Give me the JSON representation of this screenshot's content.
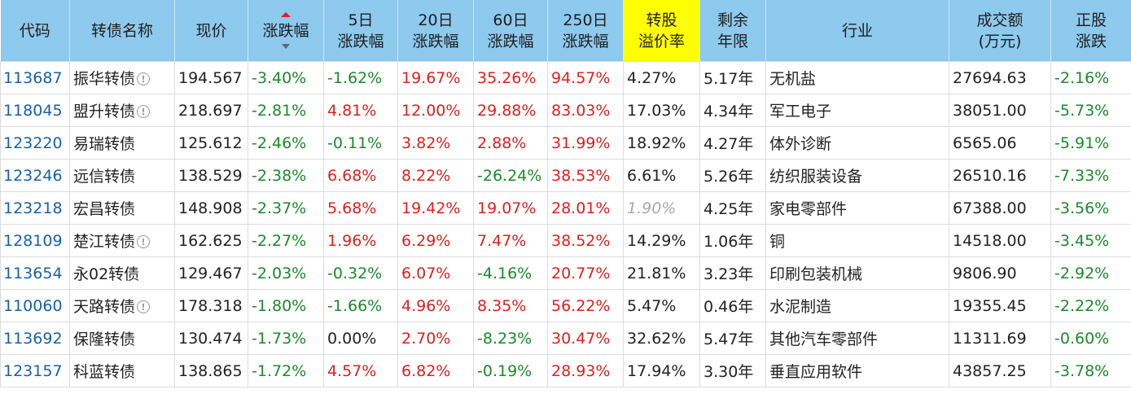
{
  "headers": {
    "code": "代码",
    "name": "转债名称",
    "price": "现价",
    "change": "涨跌幅",
    "d5_1": "5日",
    "d5_2": "涨跌幅",
    "d20_1": "20日",
    "d20_2": "涨跌幅",
    "d60_1": "60日",
    "d60_2": "涨跌幅",
    "d250_1": "250日",
    "d250_2": "涨跌幅",
    "premium_1": "转股",
    "premium_2": "溢价率",
    "remain_1": "剩余",
    "remain_2": "年限",
    "industry": "行业",
    "volume_1": "成交额",
    "volume_2": "(万元)",
    "stock_1": "正股",
    "stock_2": "涨跌"
  },
  "colors": {
    "header_bg": "#8ec9ee",
    "highlight": "#ffff00",
    "up": "#e0201c",
    "down": "#1c8a2a",
    "code": "#1a5fa8"
  },
  "sort_indicator": "change-desc",
  "rows": [
    {
      "code": "113687",
      "name": "振华转债",
      "info": true,
      "price": "194.567",
      "change": "-3.40%",
      "d5": "-1.62%",
      "d20": "19.67%",
      "d60": "35.26%",
      "d250": "94.57%",
      "premium": "4.27%",
      "remain": "5.17年",
      "industry": "无机盐",
      "volume": "27694.63",
      "stock": "-2.16%"
    },
    {
      "code": "118045",
      "name": "盟升转债",
      "info": true,
      "price": "218.697",
      "change": "-2.81%",
      "d5": "4.81%",
      "d20": "12.00%",
      "d60": "29.88%",
      "d250": "83.03%",
      "premium": "17.03%",
      "remain": "4.34年",
      "industry": "军工电子",
      "volume": "38051.00",
      "stock": "-5.73%"
    },
    {
      "code": "123220",
      "name": "易瑞转债",
      "info": false,
      "price": "125.612",
      "change": "-2.46%",
      "d5": "-0.11%",
      "d20": "3.82%",
      "d60": "2.88%",
      "d250": "31.99%",
      "premium": "18.92%",
      "remain": "4.27年",
      "industry": "体外诊断",
      "volume": "6565.06",
      "stock": "-5.91%"
    },
    {
      "code": "123246",
      "name": "远信转债",
      "info": false,
      "price": "138.529",
      "change": "-2.38%",
      "d5": "6.68%",
      "d20": "8.22%",
      "d60": "-26.24%",
      "d250": "38.53%",
      "premium": "6.61%",
      "remain": "5.26年",
      "industry": "纺织服装设备",
      "volume": "26510.16",
      "stock": "-7.33%"
    },
    {
      "code": "123218",
      "name": "宏昌转债",
      "info": false,
      "price": "148.908",
      "change": "-2.37%",
      "d5": "5.68%",
      "d20": "19.42%",
      "d60": "19.07%",
      "d250": "28.01%",
      "premium": "1.90%",
      "premium_muted": true,
      "remain": "4.25年",
      "industry": "家电零部件",
      "volume": "67388.00",
      "stock": "-3.56%"
    },
    {
      "code": "128109",
      "name": "楚江转债",
      "info": true,
      "price": "162.625",
      "change": "-2.27%",
      "d5": "1.96%",
      "d20": "6.29%",
      "d60": "7.47%",
      "d250": "38.52%",
      "premium": "14.29%",
      "remain": "1.06年",
      "industry": "铜",
      "volume": "14518.00",
      "stock": "-3.45%"
    },
    {
      "code": "113654",
      "name": "永02转债",
      "info": false,
      "price": "129.467",
      "change": "-2.03%",
      "d5": "-0.32%",
      "d20": "6.07%",
      "d60": "-4.16%",
      "d250": "20.77%",
      "premium": "21.81%",
      "remain": "3.23年",
      "industry": "印刷包装机械",
      "volume": "9806.90",
      "stock": "-2.92%"
    },
    {
      "code": "110060",
      "name": "天路转债",
      "info": true,
      "price": "178.318",
      "change": "-1.80%",
      "d5": "-1.66%",
      "d20": "4.96%",
      "d60": "8.35%",
      "d250": "56.22%",
      "premium": "5.47%",
      "remain": "0.46年",
      "industry": "水泥制造",
      "volume": "19355.45",
      "stock": "-2.22%"
    },
    {
      "code": "113692",
      "name": "保隆转债",
      "info": false,
      "price": "130.474",
      "change": "-1.73%",
      "d5": "0.00%",
      "d20": "2.70%",
      "d60": "-8.23%",
      "d250": "30.47%",
      "premium": "32.62%",
      "remain": "5.47年",
      "industry": "其他汽车零部件",
      "volume": "11311.69",
      "stock": "-0.60%"
    },
    {
      "code": "123157",
      "name": "科蓝转债",
      "info": false,
      "price": "138.865",
      "change": "-1.72%",
      "d5": "4.57%",
      "d20": "6.82%",
      "d60": "-0.19%",
      "d250": "28.93%",
      "premium": "17.94%",
      "remain": "3.30年",
      "industry": "垂直应用软件",
      "volume": "43857.25",
      "stock": "-3.78%"
    }
  ]
}
